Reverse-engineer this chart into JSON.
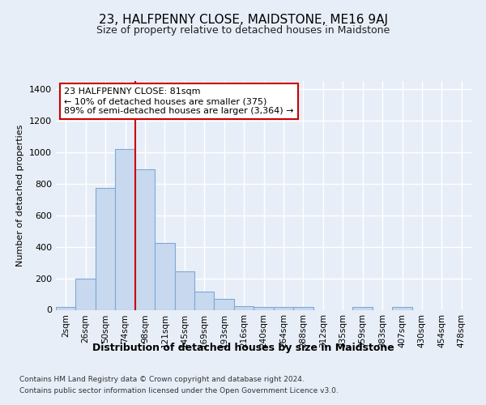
{
  "title1": "23, HALFPENNY CLOSE, MAIDSTONE, ME16 9AJ",
  "title2": "Size of property relative to detached houses in Maidstone",
  "xlabel": "Distribution of detached houses by size in Maidstone",
  "ylabel": "Number of detached properties",
  "footnote1": "Contains HM Land Registry data © Crown copyright and database right 2024.",
  "footnote2": "Contains public sector information licensed under the Open Government Licence v3.0.",
  "annotation_line1": "23 HALFPENNY CLOSE: 81sqm",
  "annotation_line2": "← 10% of detached houses are smaller (375)",
  "annotation_line3": "89% of semi-detached houses are larger (3,364) →",
  "bar_labels": [
    "2sqm",
    "26sqm",
    "50sqm",
    "74sqm",
    "98sqm",
    "121sqm",
    "145sqm",
    "169sqm",
    "193sqm",
    "216sqm",
    "240sqm",
    "264sqm",
    "288sqm",
    "312sqm",
    "335sqm",
    "359sqm",
    "383sqm",
    "407sqm",
    "430sqm",
    "454sqm",
    "478sqm"
  ],
  "bar_values": [
    20,
    200,
    775,
    1020,
    890,
    425,
    245,
    115,
    70,
    25,
    20,
    20,
    20,
    0,
    0,
    20,
    0,
    20,
    0,
    0,
    0
  ],
  "bar_color": "#c8d8ef",
  "bar_edge_color": "#7aaad4",
  "red_line_x": 3.5,
  "ylim": [
    0,
    1450
  ],
  "yticks": [
    0,
    200,
    400,
    600,
    800,
    1000,
    1200,
    1400
  ],
  "bg_color": "#e8eef8",
  "plot_bg_color": "#e8eef8",
  "grid_color": "#ffffff",
  "red_line_color": "#cc0000",
  "annotation_box_edge": "#cc0000",
  "annotation_box_face": "#ffffff",
  "title1_fontsize": 11,
  "title2_fontsize": 9,
  "xlabel_fontsize": 9,
  "ylabel_fontsize": 8,
  "xtick_fontsize": 7.5,
  "ytick_fontsize": 8,
  "footnote_fontsize": 6.5,
  "annotation_fontsize": 8
}
